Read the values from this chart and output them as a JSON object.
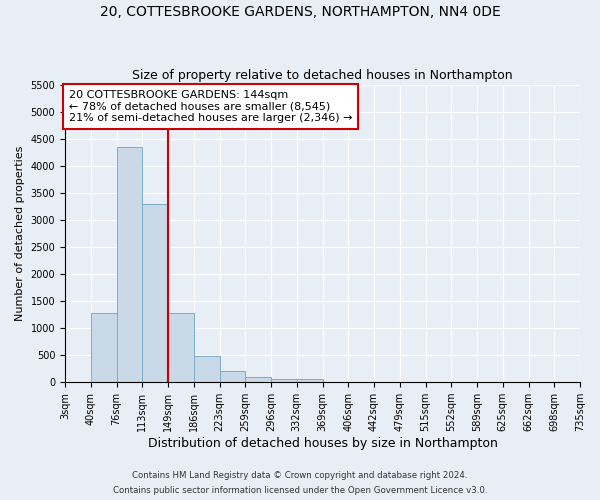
{
  "title": "20, COTTESBROOKE GARDENS, NORTHAMPTON, NN4 0DE",
  "subtitle": "Size of property relative to detached houses in Northampton",
  "xlabel": "Distribution of detached houses by size in Northampton",
  "ylabel": "Number of detached properties",
  "footnote1": "Contains HM Land Registry data © Crown copyright and database right 2024.",
  "footnote2": "Contains public sector information licensed under the Open Government Licence v3.0.",
  "bin_labels": [
    "3sqm",
    "40sqm",
    "76sqm",
    "113sqm",
    "149sqm",
    "186sqm",
    "223sqm",
    "259sqm",
    "296sqm",
    "332sqm",
    "369sqm",
    "406sqm",
    "442sqm",
    "479sqm",
    "515sqm",
    "552sqm",
    "589sqm",
    "625sqm",
    "662sqm",
    "698sqm",
    "735sqm"
  ],
  "n_bins": 20,
  "bar_heights": [
    0,
    1270,
    4340,
    3300,
    1280,
    490,
    215,
    95,
    65,
    60,
    0,
    0,
    0,
    0,
    0,
    0,
    0,
    0,
    0,
    0
  ],
  "bar_color": "#c9d9e8",
  "bar_edge_color": "#7aaccc",
  "property_size_bin": 3,
  "vline_color": "#cc0000",
  "annotation_text": "20 COTTESBROOKE GARDENS: 144sqm\n← 78% of detached houses are smaller (8,545)\n21% of semi-detached houses are larger (2,346) →",
  "annotation_box_color": "#cc0000",
  "annotation_box_facecolor": "white",
  "ylim": [
    0,
    5500
  ],
  "yticks": [
    0,
    500,
    1000,
    1500,
    2000,
    2500,
    3000,
    3500,
    4000,
    4500,
    5000,
    5500
  ],
  "bg_color": "#e8eef5",
  "plot_bg_color": "#e8eef5",
  "grid_color": "white",
  "title_fontsize": 10,
  "subtitle_fontsize": 9,
  "xlabel_fontsize": 9,
  "ylabel_fontsize": 8,
  "tick_fontsize": 7,
  "annot_fontsize": 8
}
